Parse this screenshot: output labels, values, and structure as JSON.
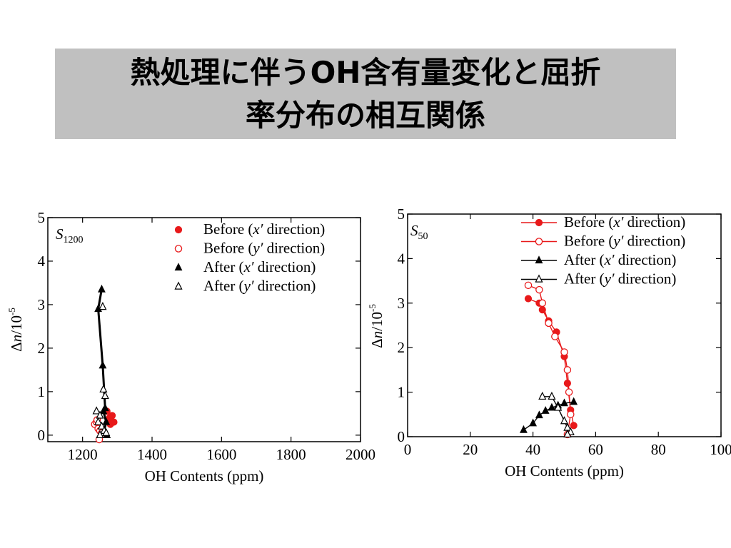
{
  "title": {
    "line1": "熱処理に伴うOH含有量変化と屈折",
    "line2": "率分布の相互関係"
  },
  "chart_data": [
    {
      "type": "scatter",
      "panel_label": {
        "main": "S",
        "sub": "1200"
      },
      "xlabel": "OH Contents (ppm)",
      "ylabel": {
        "main": "Δn/10",
        "sup": "-5"
      },
      "xlim": [
        1100,
        2000
      ],
      "ylim": [
        -0.15,
        5
      ],
      "xticks": [
        1200,
        1400,
        1600,
        1800,
        2000
      ],
      "yticks": [
        0,
        1,
        2,
        3,
        4,
        5
      ],
      "legend_position": "top-right",
      "series": [
        {
          "name": "Before (x′ direction)",
          "label_parts": [
            "Before (",
            "x′",
            " direction)"
          ],
          "marker": "filled-circle",
          "color": "#e8191a",
          "line": false,
          "points": [
            [
              1275,
              0.35
            ],
            [
              1285,
              0.45
            ],
            [
              1280,
              0.25
            ],
            [
              1270,
              0.55
            ],
            [
              1290,
              0.3
            ],
            [
              1278,
              0.4
            ]
          ]
        },
        {
          "name": "Before (y′ direction)",
          "label_parts": [
            "Before (",
            "y′",
            " direction)"
          ],
          "marker": "open-circle",
          "color": "#e8191a",
          "line": false,
          "points": [
            [
              1235,
              0.25
            ],
            [
              1240,
              0.3
            ],
            [
              1245,
              0.15
            ],
            [
              1250,
              0.1
            ],
            [
              1248,
              -0.1
            ],
            [
              1255,
              0.05
            ],
            [
              1242,
              0.35
            ]
          ]
        },
        {
          "name": "After (x′ direction)",
          "label_parts": [
            "After (",
            "x′",
            " direction)"
          ],
          "marker": "filled-triangle",
          "color": "#000000",
          "line": true,
          "points": [
            [
              1255,
              3.35
            ],
            [
              1245,
              2.9
            ],
            [
              1258,
              1.6
            ],
            [
              1265,
              0.62
            ],
            [
              1260,
              0.55
            ],
            [
              1268,
              0.3
            ],
            [
              1262,
              0.1
            ],
            [
              1270,
              0.0
            ]
          ]
        },
        {
          "name": "After (y′ direction)",
          "label_parts": [
            "After (",
            "y′",
            " direction)"
          ],
          "marker": "open-triangle",
          "color": "#000000",
          "line": false,
          "points": [
            [
              1258,
              2.95
            ],
            [
              1260,
              1.05
            ],
            [
              1265,
              0.9
            ],
            [
              1240,
              0.55
            ],
            [
              1250,
              0.45
            ],
            [
              1245,
              0.3
            ],
            [
              1255,
              0.2
            ],
            [
              1262,
              0.1
            ],
            [
              1268,
              0.05
            ],
            [
              1250,
              0.0
            ]
          ]
        }
      ]
    },
    {
      "type": "line",
      "panel_label": {
        "main": "S",
        "sub": "50"
      },
      "xlabel": "OH Contents (ppm)",
      "ylabel": {
        "main": "Δn/10",
        "sup": "-5"
      },
      "xlim": [
        0,
        100
      ],
      "ylim": [
        0,
        5
      ],
      "xticks": [
        0,
        20,
        40,
        60,
        80,
        100
      ],
      "yticks": [
        0,
        1,
        2,
        3,
        4,
        5
      ],
      "legend_position": "top-right",
      "series": [
        {
          "name": "Before (x′ direction)",
          "label_parts": [
            "Before (",
            "x′",
            " direction)"
          ],
          "marker": "filled-circle",
          "color": "#e8191a",
          "line": true,
          "points": [
            [
              38.5,
              3.1
            ],
            [
              42,
              3.0
            ],
            [
              43,
              2.85
            ],
            [
              45,
              2.6
            ],
            [
              47.5,
              2.35
            ],
            [
              50,
              1.8
            ],
            [
              51,
              1.2
            ],
            [
              52,
              0.6
            ],
            [
              53,
              0.25
            ]
          ]
        },
        {
          "name": "Before (y′ direction)",
          "label_parts": [
            "Before (",
            "y′",
            " direction)"
          ],
          "marker": "open-circle",
          "color": "#e8191a",
          "line": true,
          "points": [
            [
              38.5,
              3.4
            ],
            [
              42,
              3.3
            ],
            [
              43,
              3.0
            ],
            [
              45,
              2.55
            ],
            [
              47,
              2.25
            ],
            [
              50,
              1.9
            ],
            [
              51,
              1.5
            ],
            [
              51.5,
              1.0
            ],
            [
              52,
              0.5
            ],
            [
              51,
              0.05
            ]
          ]
        },
        {
          "name": "After (x′ direction)",
          "label_parts": [
            "After (",
            "x′",
            " direction)"
          ],
          "marker": "filled-triangle",
          "color": "#000000",
          "line": true,
          "points": [
            [
              37,
              0.15
            ],
            [
              40,
              0.3
            ],
            [
              42,
              0.48
            ],
            [
              44,
              0.58
            ],
            [
              46,
              0.65
            ],
            [
              48,
              0.7
            ],
            [
              50,
              0.75
            ],
            [
              53,
              0.78
            ]
          ]
        },
        {
          "name": "After (y′ direction)",
          "label_parts": [
            "After (",
            "y′",
            " direction)"
          ],
          "marker": "open-triangle",
          "color": "#000000",
          "line": true,
          "points": [
            [
              43,
              0.9
            ],
            [
              46,
              0.9
            ],
            [
              48,
              0.65
            ],
            [
              50,
              0.35
            ],
            [
              51,
              0.2
            ],
            [
              52,
              0.1
            ],
            [
              51,
              0.05
            ]
          ]
        }
      ]
    }
  ]
}
